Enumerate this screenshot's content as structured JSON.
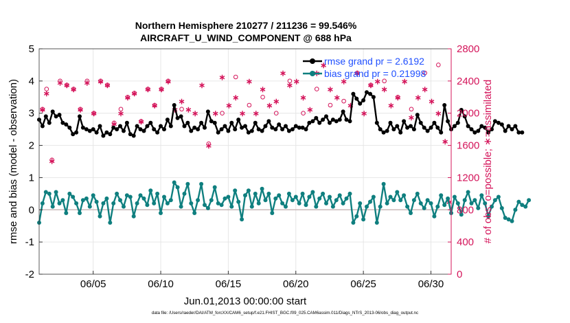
{
  "chart_data": {
    "type": "line",
    "title_line1": "Northern Hemisphere 210277 / 211236 = 99.546%",
    "title_line2": "AIRCRAFT_U_WIND_COMPONENT @ 688 hPa",
    "xlabel": "Jun.01,2013 00:00:00 start",
    "ylabel_left": "rmse and bias (model - observation)",
    "ylabel_right": "# of obs: o=possible; ∗=assimilated",
    "footer": "data file: /Users/raeder/DAI/ATM_forcXX/CAM6_setup/f.e21.FHIST_BGC.f09_025.CAM6assim.011/Diags_NTrS_2013-06/obs_diag_output.nc",
    "xlim": [
      1,
      31.5
    ],
    "ylim_left": [
      -2,
      5
    ],
    "ylim_right": [
      0,
      2800
    ],
    "x_ticks": [
      5,
      10,
      15,
      20,
      25,
      30
    ],
    "x_tick_labels": [
      "06/05",
      "06/10",
      "06/15",
      "06/20",
      "06/25",
      "06/30"
    ],
    "y_left_ticks": [
      -2,
      -1,
      0,
      1,
      2,
      3,
      4,
      5
    ],
    "y_left_tick_labels": [
      "-2",
      "-1",
      "0",
      "1",
      "2",
      "3",
      "4",
      "5"
    ],
    "y_right_ticks": [
      0,
      400,
      800,
      1200,
      1600,
      2000,
      2400,
      2800
    ],
    "y_right_tick_labels": [
      "0",
      "400",
      "800",
      "1200",
      "1600",
      "2000",
      "2400",
      "2800"
    ],
    "x_start": 1,
    "x_step": 0.25,
    "series": [
      {
        "name": "rmse",
        "legend": "rmse grand pr = 2.6192",
        "color": "#000000",
        "values": [
          2.8,
          2.6,
          2.9,
          2.7,
          3.05,
          2.9,
          2.95,
          2.7,
          2.65,
          2.55,
          2.35,
          2.4,
          2.9,
          2.55,
          2.5,
          2.45,
          2.5,
          2.4,
          2.6,
          2.3,
          2.4,
          2.35,
          2.55,
          2.5,
          2.6,
          2.45,
          2.7,
          2.35,
          2.3,
          2.6,
          2.5,
          2.45,
          2.6,
          2.7,
          2.5,
          2.4,
          2.6,
          2.5,
          2.8,
          2.6,
          3.25,
          2.85,
          2.9,
          2.6,
          2.7,
          2.45,
          2.55,
          2.5,
          2.7,
          2.55,
          3.05,
          2.75,
          2.7,
          2.4,
          2.5,
          2.6,
          2.45,
          2.7,
          2.5,
          2.8,
          2.55,
          2.6,
          2.4,
          2.45,
          2.7,
          2.5,
          2.45,
          2.6,
          2.75,
          2.55,
          2.5,
          2.65,
          2.5,
          2.6,
          2.45,
          2.5,
          2.6,
          2.55,
          2.55,
          2.5,
          2.7,
          2.75,
          2.85,
          2.7,
          2.8,
          2.9,
          2.7,
          2.8,
          2.75,
          2.8,
          3.05,
          2.8,
          2.75,
          3.6,
          3.45,
          3.3,
          3.4,
          3.65,
          3.6,
          3.5,
          2.7,
          2.5,
          2.4,
          2.45,
          2.7,
          2.5,
          2.6,
          2.4,
          2.75,
          2.55,
          2.6,
          2.5,
          2.95,
          2.7,
          2.55,
          2.45,
          2.55,
          2.7,
          2.55,
          2.4,
          3.25,
          2.75,
          2.5,
          2.6,
          2.7,
          3.1,
          2.9,
          2.6,
          2.5,
          2.4,
          2.45,
          2.6,
          2.55,
          2.4,
          2.5,
          2.75,
          2.7,
          2.65,
          2.45,
          2.6,
          2.5,
          2.6,
          2.4,
          2.4
        ]
      },
      {
        "name": "bias",
        "legend": "bias grand pr = 0.21998",
        "color": "#0f7f7f",
        "values": [
          -0.4,
          0.2,
          0.55,
          0.5,
          0.1,
          0.55,
          0.2,
          0.3,
          -0.1,
          0.5,
          0.4,
          0.2,
          -0.1,
          0.3,
          0.35,
          0.1,
          0.45,
          0.25,
          -0.2,
          0.2,
          0.35,
          -0.4,
          0.2,
          0.5,
          0.3,
          0.1,
          0.45,
          0.4,
          -0.2,
          0.2,
          0.45,
          0.35,
          0.15,
          0.6,
          0.2,
          0.5,
          -0.1,
          0.4,
          0.2,
          0.3,
          0.85,
          0.7,
          0.1,
          0.5,
          0.8,
          0.2,
          -0.1,
          0.3,
          0.8,
          0.15,
          0.05,
          0.3,
          0.7,
          0.2,
          0.15,
          0.35,
          0.4,
          0.1,
          0.6,
          0.25,
          -0.3,
          0.45,
          0.6,
          0.1,
          0.5,
          0.2,
          0.65,
          0.3,
          0.5,
          -0.1,
          0.35,
          0.45,
          0.2,
          0.1,
          0.5,
          0.3,
          0.4,
          0.2,
          0.5,
          0.15,
          0.4,
          0.55,
          0.1,
          0.35,
          0.5,
          0.2,
          0.4,
          0.1,
          0.3,
          0.45,
          0.2,
          0.35,
          0.5,
          -0.4,
          -0.2,
          0.2,
          -0.3,
          0.1,
          0.25,
          0.4,
          -0.4,
          0.1,
          0.8,
          0.2,
          0.4,
          0.3,
          0.55,
          0.3,
          0.45,
          0.1,
          -0.1,
          0.3,
          0.5,
          0.2,
          0.05,
          0.3,
          0.2,
          -0.2,
          0.1,
          0.45,
          0.15,
          0.35,
          -0.1,
          0.4,
          0.2,
          -0.15,
          0.3,
          0.55,
          0.2,
          0.3,
          0.05,
          0.45,
          0.2,
          -0.2,
          0.1,
          0.3,
          0.4,
          0.05,
          -0.25,
          -0.3,
          -0.35,
          0.0,
          0.25,
          0.15,
          0.1,
          0.3
        ]
      }
    ],
    "obs_possible": {
      "name": "possible",
      "color": "#d4145a",
      "x": [
        1.25,
        1.55,
        1.95,
        2.55,
        3.05,
        3.55,
        4.05,
        4.55,
        5.05,
        5.55,
        6.05,
        6.55,
        7.05,
        7.55,
        8.05,
        8.55,
        9.05,
        9.55,
        10.05,
        10.55,
        11.55,
        13.55,
        14.55,
        15.55,
        16.55,
        17.55,
        18.55,
        19.55,
        20.55,
        21.55,
        22.55,
        23.55,
        24.55,
        25.55,
        26.55,
        27.55,
        28.55,
        29.55,
        30.55
      ],
      "values": [
        2050,
        2300,
        1420,
        2400,
        2350,
        2300,
        2050,
        2400,
        2000,
        2400,
        2350,
        1880,
        2050,
        2200,
        2250,
        1900,
        2300,
        2100,
        2300,
        2400,
        2050,
        1620,
        2000,
        2450,
        2100,
        2200,
        2000,
        2400,
        2000,
        2300,
        2100,
        2150,
        2500,
        2350,
        2400,
        2200,
        2050,
        2500,
        2600
      ]
    },
    "obs_assimilated": {
      "name": "assimilated",
      "color": "#d4145a",
      "x": [
        1.25,
        1.55,
        1.95,
        2.55,
        3.05,
        3.55,
        4.05,
        4.55,
        5.05,
        5.55,
        6.05,
        6.55,
        7.05,
        7.55,
        8.05,
        8.55,
        9.05,
        9.55,
        10.05,
        10.55,
        11.05,
        11.55,
        12.05,
        12.55,
        13.05,
        13.55,
        14.05,
        14.55,
        15.05,
        15.55,
        16.05,
        16.55,
        17.05,
        17.55,
        18.05,
        18.55,
        19.05,
        19.55,
        20.05,
        20.55,
        21.05,
        21.55,
        22.05,
        22.55,
        23.05,
        23.55,
        24.05,
        24.55,
        25.05,
        25.55,
        26.05,
        26.55,
        27.05,
        27.55,
        28.05,
        28.55,
        29.05,
        29.55,
        30.05,
        30.55,
        31.05,
        31.35
      ],
      "values": [
        2050,
        2250,
        1410,
        2380,
        2350,
        2300,
        2050,
        2380,
        2000,
        2400,
        2350,
        1870,
        2000,
        2200,
        2250,
        1900,
        2300,
        2100,
        2300,
        2400,
        2050,
        2150,
        2050,
        2000,
        2350,
        1600,
        2000,
        2450,
        2100,
        2200,
        2000,
        2400,
        2000,
        2300,
        2100,
        2150,
        2500,
        2350,
        2400,
        2200,
        2050,
        2500,
        2600,
        2300,
        2200,
        2400,
        2100,
        2500,
        2000,
        2350,
        2400,
        2300,
        2100,
        2200,
        2400,
        1950,
        2200,
        2300,
        2150,
        2000,
        1650,
        900
      ]
    }
  }
}
